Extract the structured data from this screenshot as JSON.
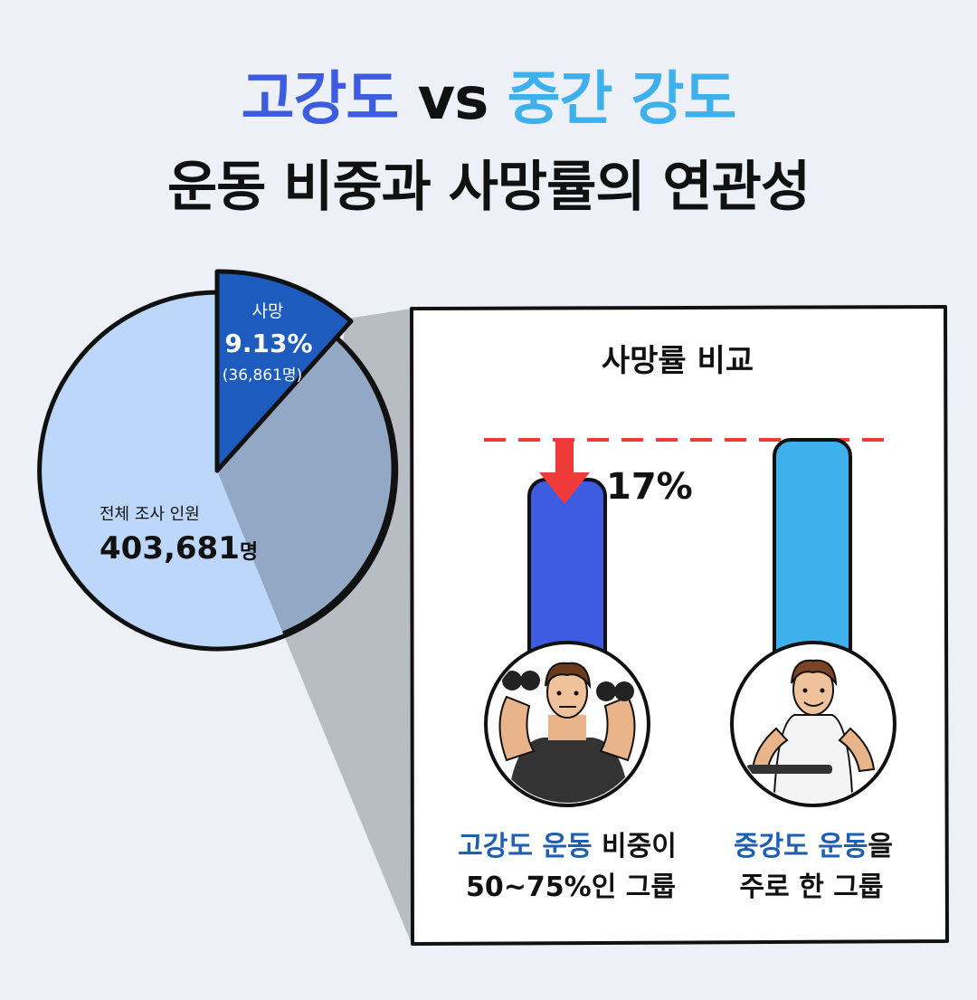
{
  "title": {
    "part1": "고강도",
    "vs": "vs",
    "part2": "중간 강도",
    "line2": "운동 비중과 사망률의 연관성"
  },
  "colors": {
    "title_blue": "#3d5ce0",
    "title_sky": "#3eb0ec",
    "pie_main": "#bcd7f9",
    "pie_slice": "#1d5bbf",
    "bar_high": "#3d5ce0",
    "bar_mid": "#3eb0ec",
    "arrow": "#f03a3a",
    "label_blue": "#1f5fb0"
  },
  "chart_data": [
    {
      "type": "pie",
      "slices": [
        {
          "label": "사망",
          "value_pct": 9.13,
          "value_text": "9.13%",
          "count_text": "(36,861명)"
        },
        {
          "label": "전체 조사 인원",
          "value_text": "403,681",
          "unit": "명"
        }
      ],
      "total": 403681
    },
    {
      "type": "bar",
      "title": "사망률 비교",
      "categories": [
        {
          "highlight": "고강도 운동",
          "rest": " 비중이",
          "line2": "50~75%인 그룹"
        },
        {
          "highlight": "중강도 운동",
          "rest": "을",
          "line2": "주로 한 그룹"
        }
      ],
      "values": [
        83,
        100
      ],
      "annotation": "17%",
      "icons": [
        "dumbbell-lifter-icon",
        "rowing-man-icon"
      ]
    }
  ]
}
